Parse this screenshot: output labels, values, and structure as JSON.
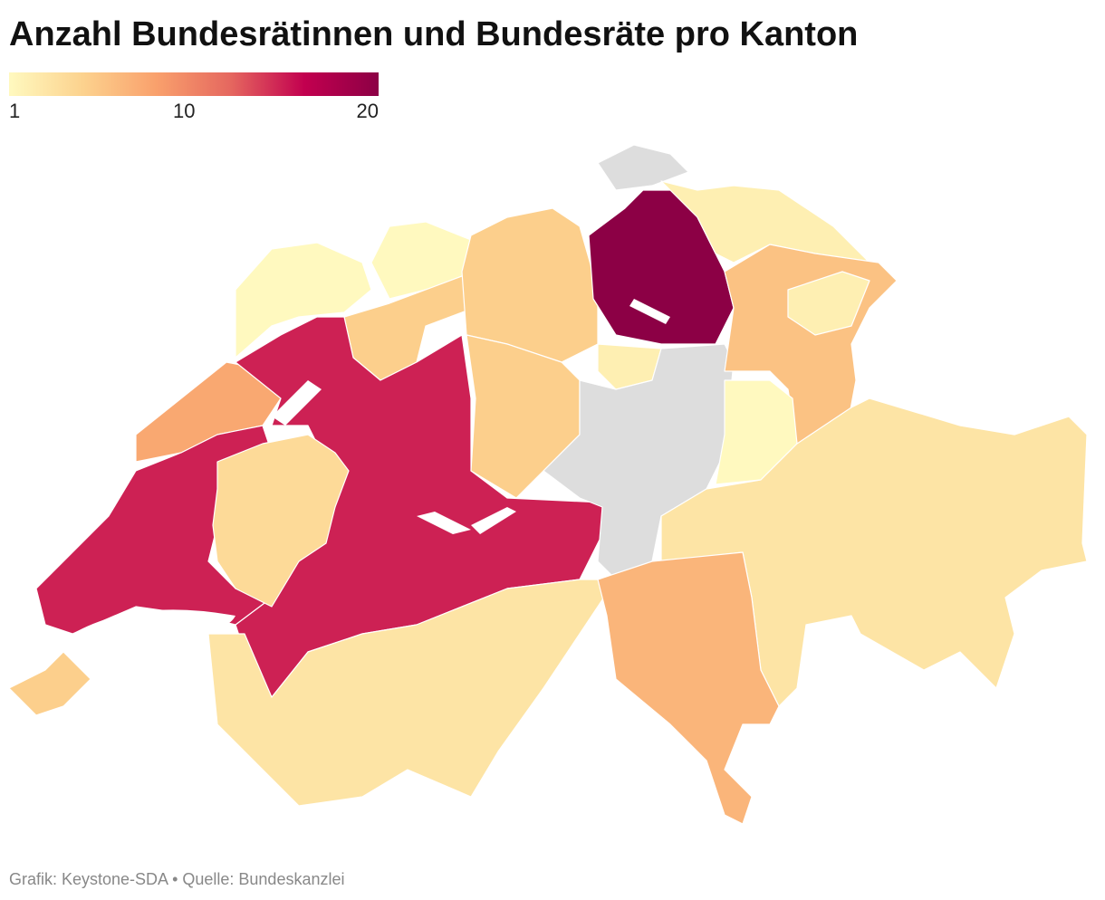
{
  "chart_data": {
    "type": "choropleth",
    "title": "Anzahl Bundesrätinnen und Bundesräte pro Kanton",
    "colorlim": [
      1,
      20
    ],
    "colorticks": [
      1,
      10,
      20
    ],
    "colors": [
      "#fff9bf",
      "#fcd28e",
      "#f9a06c",
      "#e5675f",
      "#c2004f",
      "#8c0045"
    ],
    "null_color": "#dddddd",
    "values": [
      1,
      1,
      5,
      8,
      15,
      15,
      4,
      5,
      3,
      5,
      5,
      20,
      2,
      null,
      null,
      2,
      6,
      2,
      1,
      3,
      7
    ],
    "source": "Grafik: Keystone-SDA • Quelle: Bundeskanzlei"
  }
}
